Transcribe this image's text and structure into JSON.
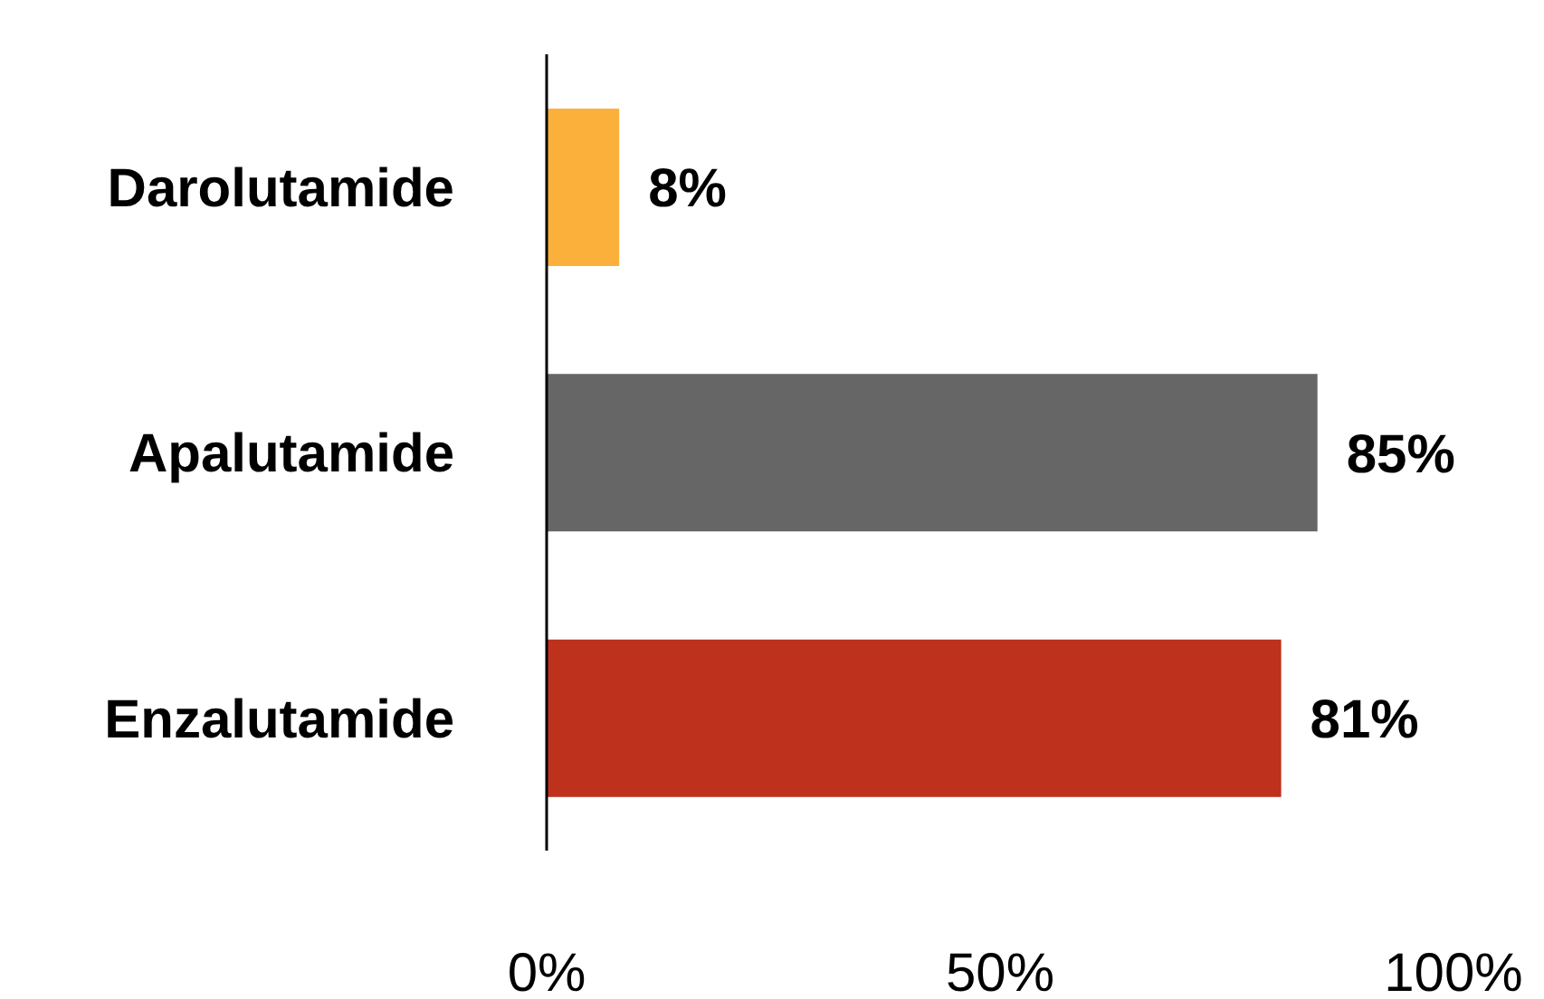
{
  "chart_data": {
    "type": "bar",
    "orientation": "horizontal",
    "categories": [
      "Darolutamide",
      "Apalutamide",
      "Enzalutamide"
    ],
    "values": [
      8,
      85,
      81
    ],
    "colors": [
      "#fbb03b",
      "#666666",
      "#be311d"
    ],
    "value_labels": [
      "8%",
      "85%",
      "81%"
    ],
    "xlim": [
      0,
      100
    ],
    "xticks": [
      {
        "value": 0,
        "label": "0%"
      },
      {
        "value": 50,
        "label": "50%"
      },
      {
        "value": 100,
        "label": "100%"
      }
    ],
    "grid": false,
    "legend": false
  }
}
